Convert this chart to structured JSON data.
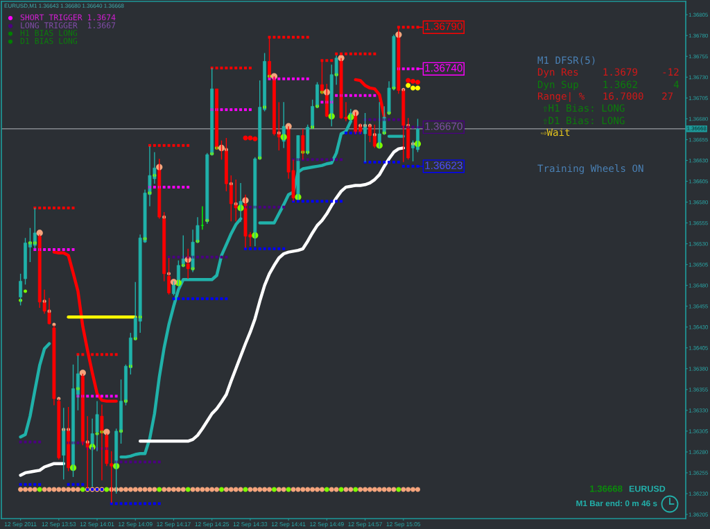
{
  "chart_data": {
    "type": "candlestick",
    "title": "EURUSD,M1 1.36643 1.36680 1.36640 1.36668",
    "x": [
      "2011-09-12T13:45",
      "2011-09-12T13:46",
      "2011-09-12T13:47",
      "2011-09-12T13:48",
      "2011-09-12T13:49",
      "2011-09-12T13:50",
      "2011-09-12T13:51",
      "2011-09-12T13:52",
      "2011-09-12T13:53",
      "2011-09-12T13:54",
      "2011-09-12T13:55",
      "2011-09-12T13:56",
      "2011-09-12T13:57",
      "2011-09-12T13:58",
      "2011-09-12T13:59",
      "2011-09-12T14:00",
      "2011-09-12T14:01",
      "2011-09-12T14:02",
      "2011-09-12T14:03",
      "2011-09-12T14:04",
      "2011-09-12T14:05",
      "2011-09-12T14:06",
      "2011-09-12T14:07",
      "2011-09-12T14:08",
      "2011-09-12T14:09",
      "2011-09-12T14:10",
      "2011-09-12T14:11",
      "2011-09-12T14:12",
      "2011-09-12T14:13",
      "2011-09-12T14:14",
      "2011-09-12T14:15",
      "2011-09-12T14:16",
      "2011-09-12T14:17",
      "2011-09-12T14:18",
      "2011-09-12T14:19",
      "2011-09-12T14:20",
      "2011-09-12T14:21",
      "2011-09-12T14:22",
      "2011-09-12T14:23",
      "2011-09-12T14:24",
      "2011-09-12T14:25",
      "2011-09-12T14:26",
      "2011-09-12T14:27",
      "2011-09-12T14:28",
      "2011-09-12T14:29",
      "2011-09-12T14:30",
      "2011-09-12T14:31",
      "2011-09-12T14:32",
      "2011-09-12T14:33",
      "2011-09-12T14:34",
      "2011-09-12T14:35",
      "2011-09-12T14:36",
      "2011-09-12T14:37",
      "2011-09-12T14:38",
      "2011-09-12T14:39",
      "2011-09-12T14:40",
      "2011-09-12T14:41",
      "2011-09-12T14:42",
      "2011-09-12T14:43",
      "2011-09-12T14:44",
      "2011-09-12T14:45",
      "2011-09-12T14:46",
      "2011-09-12T14:47",
      "2011-09-12T14:48",
      "2011-09-12T14:49",
      "2011-09-12T14:50",
      "2011-09-12T14:51",
      "2011-09-12T14:52",
      "2011-09-12T14:53",
      "2011-09-12T14:54",
      "2011-09-12T14:55",
      "2011-09-12T14:56",
      "2011-09-12T14:57",
      "2011-09-12T14:58",
      "2011-09-12T14:59",
      "2011-09-12T15:00",
      "2011-09-12T15:01",
      "2011-09-12T15:02",
      "2011-09-12T15:03",
      "2011-09-12T15:04",
      "2011-09-12T15:05",
      "2011-09-12T15:06",
      "2011-09-12T15:07",
      "2011-09-12T15:08"
    ],
    "ohlc": [
      [
        1.36466,
        1.36494,
        1.36456,
        1.36485
      ],
      [
        1.36488,
        1.36537,
        1.36481,
        1.36531
      ],
      [
        1.36526,
        1.36549,
        1.36508,
        1.36532
      ],
      [
        1.36528,
        1.36573,
        1.36524,
        1.36543
      ],
      [
        1.36539,
        1.36541,
        1.36453,
        1.3646
      ],
      [
        1.3646,
        1.36475,
        1.36446,
        1.36449
      ],
      [
        1.36448,
        1.36465,
        1.36433,
        1.36434
      ],
      [
        1.36429,
        1.36432,
        1.36336,
        1.36344
      ],
      [
        1.36341,
        1.36344,
        1.36271,
        1.36273
      ],
      [
        1.36276,
        1.36333,
        1.36247,
        1.36308
      ],
      [
        1.36305,
        1.36334,
        1.36257,
        1.36261
      ],
      [
        1.36262,
        1.36385,
        1.3625,
        1.36356
      ],
      [
        1.36349,
        1.36396,
        1.3633,
        1.36374
      ],
      [
        1.36371,
        1.36374,
        1.36288,
        1.36291
      ],
      [
        1.36292,
        1.36323,
        1.36236,
        1.36285
      ],
      [
        1.36285,
        1.3632,
        1.36238,
        1.36302
      ],
      [
        1.36304,
        1.36341,
        1.36281,
        1.36325
      ],
      [
        1.36323,
        1.36337,
        1.36246,
        1.36304
      ],
      [
        1.363,
        1.36302,
        1.36263,
        1.36266
      ],
      [
        1.36266,
        1.36281,
        1.36219,
        1.36263
      ],
      [
        1.36265,
        1.36308,
        1.3623,
        1.36305
      ],
      [
        1.36304,
        1.36367,
        1.3629,
        1.36341
      ],
      [
        1.36341,
        1.36385,
        1.36336,
        1.36383
      ],
      [
        1.36381,
        1.36423,
        1.36373,
        1.36417
      ],
      [
        1.36417,
        1.36484,
        1.36414,
        1.36441
      ],
      [
        1.36437,
        1.36541,
        1.36423,
        1.36537
      ],
      [
        1.36532,
        1.36595,
        1.36531,
        1.36591
      ],
      [
        1.36589,
        1.36647,
        1.36575,
        1.36612
      ],
      [
        1.36608,
        1.3664,
        1.36602,
        1.36621
      ],
      [
        1.3662,
        1.36632,
        1.3656,
        1.36562
      ],
      [
        1.3656,
        1.36568,
        1.36485,
        1.36494
      ],
      [
        1.36491,
        1.36513,
        1.36469,
        1.36471
      ],
      [
        1.3647,
        1.36485,
        1.36468,
        1.36483
      ],
      [
        1.36483,
        1.3651,
        1.3648,
        1.36504
      ],
      [
        1.36506,
        1.3654,
        1.36502,
        1.36512
      ],
      [
        1.36506,
        1.36524,
        1.36488,
        1.365
      ],
      [
        1.365,
        1.36547,
        1.36496,
        1.36532
      ],
      [
        1.36532,
        1.36562,
        1.36531,
        1.36552
      ],
      [
        1.36552,
        1.36575,
        1.36547,
        1.36552
      ],
      [
        1.36557,
        1.36639,
        1.36554,
        1.36637
      ],
      [
        1.36637,
        1.36741,
        1.36636,
        1.36716
      ],
      [
        1.36716,
        1.36716,
        1.36643,
        1.36645
      ],
      [
        1.36646,
        1.36654,
        1.36631,
        1.36642
      ],
      [
        1.36642,
        1.36657,
        1.36593,
        1.36602
      ],
      [
        1.36602,
        1.36612,
        1.36557,
        1.36578
      ],
      [
        1.36578,
        1.36607,
        1.36557,
        1.36573
      ],
      [
        1.36573,
        1.36603,
        1.36556,
        1.36581
      ],
      [
        1.36578,
        1.36589,
        1.36525,
        1.36539
      ],
      [
        1.36541,
        1.36544,
        1.36527,
        1.36538
      ],
      [
        1.36541,
        1.36634,
        1.36527,
        1.36632
      ],
      [
        1.36632,
        1.36726,
        1.36631,
        1.36694
      ],
      [
        1.36691,
        1.36759,
        1.36689,
        1.36749
      ],
      [
        1.36749,
        1.36778,
        1.36729,
        1.36731
      ],
      [
        1.36729,
        1.36731,
        1.3666,
        1.36662
      ],
      [
        1.36662,
        1.367,
        1.36642,
        1.36658
      ],
      [
        1.36653,
        1.367,
        1.36645,
        1.36671
      ],
      [
        1.3667,
        1.36671,
        1.36608,
        1.36616
      ],
      [
        1.36618,
        1.36631,
        1.36581,
        1.36585
      ],
      [
        1.36587,
        1.3666,
        1.36583,
        1.3666
      ],
      [
        1.3666,
        1.36668,
        1.36631,
        1.36639
      ],
      [
        1.36639,
        1.36673,
        1.36637,
        1.3667
      ],
      [
        1.3667,
        1.36703,
        1.36668,
        1.36695
      ],
      [
        1.36695,
        1.36724,
        1.36693,
        1.36721
      ],
      [
        1.36721,
        1.3675,
        1.3671,
        1.36712
      ],
      [
        1.36711,
        1.36722,
        1.36682,
        1.36683
      ],
      [
        1.36683,
        1.36745,
        1.36671,
        1.36733
      ],
      [
        1.36732,
        1.36756,
        1.36721,
        1.36753
      ],
      [
        1.36751,
        1.36753,
        1.3668,
        1.36681
      ],
      [
        1.36682,
        1.367,
        1.36677,
        1.3668
      ],
      [
        1.36681,
        1.36692,
        1.36677,
        1.36687
      ],
      [
        1.36685,
        1.36688,
        1.36662,
        1.36664
      ],
      [
        1.36672,
        1.36674,
        1.36662,
        1.36664
      ],
      [
        1.36662,
        1.36687,
        1.36628,
        1.36671
      ],
      [
        1.36671,
        1.36673,
        1.36652,
        1.3666
      ],
      [
        1.3666,
        1.36673,
        1.36645,
        1.36647
      ],
      [
        1.36649,
        1.367,
        1.36645,
        1.36662
      ],
      [
        1.36662,
        1.36695,
        1.36661,
        1.36682
      ],
      [
        1.36687,
        1.36725,
        1.36685,
        1.36717
      ],
      [
        1.36717,
        1.36781,
        1.36714,
        1.36779
      ],
      [
        1.3678,
        1.3679,
        1.3671,
        1.36714
      ],
      [
        1.36715,
        1.36716,
        1.36628,
        1.36672
      ],
      [
        1.36671,
        1.36681,
        1.36631,
        1.36633
      ],
      [
        1.36645,
        1.36654,
        1.36629,
        1.36651
      ],
      [
        1.36643,
        1.3668,
        1.3664,
        1.36668
      ]
    ],
    "colors": [
      "#20b2aa",
      "#20b2aa",
      "#20b2aa",
      "#20b2aa",
      "#ff0000",
      "#ff0000",
      "#ff0000",
      "#ff0000",
      "#ff0000",
      "#20b2aa",
      "#ff0000",
      "#20b2aa",
      "#20b2aa",
      "#ff0000",
      "#ff0000",
      "#20b2aa",
      "#20b2aa",
      "#ff0000",
      "#ff0000",
      "#ff0000",
      "#20b2aa",
      "#20b2aa",
      "#20b2aa",
      "#20b2aa",
      "#20b2aa",
      "#20b2aa",
      "#20b2aa",
      "#20b2aa",
      "#20b2aa",
      "#ff0000",
      "#ff0000",
      "#ff0000",
      "#20b2aa",
      "#20b2aa",
      "#20b2aa",
      "#ff0000",
      "#20b2aa",
      "#20b2aa",
      "#00ff00",
      "#20b2aa",
      "#20b2aa",
      "#ff0000",
      "#ff0000",
      "#ff0000",
      "#ff0000",
      "#ff0000",
      "#20b2aa",
      "#ff0000",
      "#ff0000",
      "#20b2aa",
      "#20b2aa",
      "#20b2aa",
      "#ff0000",
      "#ff0000",
      "#ff0000",
      "#20b2aa",
      "#ff0000",
      "#ff0000",
      "#20b2aa",
      "#ff0000",
      "#20b2aa",
      "#20b2aa",
      "#20b2aa",
      "#ff0000",
      "#ff0000",
      "#20b2aa",
      "#20b2aa",
      "#ff0000",
      "#ff0000",
      "#20b2aa",
      "#ff0000",
      "#ff0000",
      "#20b2aa",
      "#ff0000",
      "#ff0000",
      "#20b2aa",
      "#20b2aa",
      "#20b2aa",
      "#20b2aa",
      "#ff0000",
      "#ff0000",
      "#ff0000",
      "#20b2aa",
      "#20b2aa"
    ],
    "series": [
      {
        "type": "line",
        "color": "#20b2aa",
        "line_style": "solid",
        "values": [
          1.36298,
          1.36301,
          1.36323,
          1.36354,
          1.36384,
          1.36404,
          1.3641,
          null,
          null,
          null,
          null,
          null,
          null,
          null,
          null,
          null,
          null,
          null,
          null,
          null,
          null,
          1.36274,
          1.36274,
          1.36275,
          1.36277,
          1.36278,
          1.36278,
          1.36296,
          1.36326,
          1.3637,
          1.36405,
          1.36433,
          1.36455,
          1.36475,
          1.36487,
          1.36487,
          1.36487,
          1.36487,
          1.36487,
          1.36487,
          1.36487,
          1.36492,
          1.36516,
          1.36529,
          1.36542,
          1.36553,
          1.3656,
          null,
          null,
          null,
          1.36555,
          1.36555,
          1.36555,
          1.36555,
          1.36566,
          1.36577,
          1.36589,
          1.36592,
          1.36616,
          1.3662,
          1.36621,
          1.36622,
          1.36623,
          1.36624,
          1.36626,
          1.36627,
          1.36639,
          1.36662,
          1.36665,
          1.36677,
          null,
          null,
          null,
          null,
          null,
          null,
          null,
          1.36659,
          1.36659,
          1.36659,
          1.36659,
          null,
          null,
          null
        ]
      },
      {
        "type": "line",
        "color": "#ffffff",
        "line_style": "solid",
        "values": [
          1.36252,
          1.36255,
          1.36256,
          1.36257,
          1.36258,
          1.36262,
          1.36264,
          1.36266,
          1.36266,
          1.36266,
          null,
          null,
          null,
          null,
          null,
          null,
          null,
          null,
          null,
          null,
          null,
          null,
          null,
          null,
          null,
          1.36293,
          1.36293,
          1.36293,
          1.36293,
          1.36293,
          1.36293,
          1.36293,
          1.36293,
          1.36293,
          1.36293,
          1.36293,
          1.36295,
          1.363,
          1.36308,
          1.36317,
          1.36326,
          1.36332,
          1.3634,
          1.36349,
          1.36365,
          1.3638,
          1.36395,
          1.3641,
          1.36424,
          1.3644,
          1.36461,
          1.3648,
          1.36494,
          1.36504,
          1.36513,
          1.36518,
          1.3652,
          1.36521,
          1.36522,
          1.36524,
          1.36533,
          1.36543,
          1.36552,
          1.36558,
          1.36566,
          1.36576,
          1.36585,
          1.36593,
          1.36598,
          1.36599,
          1.366,
          1.366,
          1.36601,
          1.36603,
          1.36607,
          1.36613,
          1.36623,
          1.36632,
          1.3664,
          1.36644,
          1.36645,
          null,
          null,
          null
        ]
      },
      {
        "type": "line",
        "color": "#ff0000",
        "line_style": "solid",
        "values": [
          null,
          null,
          null,
          null,
          null,
          null,
          null,
          1.3652,
          1.36519,
          1.36519,
          1.36516,
          1.36495,
          1.36473,
          1.36431,
          1.36402,
          1.36375,
          1.3635,
          1.36342,
          1.36341,
          1.36341,
          1.36341,
          null,
          null,
          null,
          null,
          null,
          null,
          null,
          null,
          null,
          null,
          null,
          null,
          null,
          null,
          null,
          null,
          null,
          null,
          null,
          null,
          null,
          null,
          null,
          null,
          null,
          null,
          null,
          null,
          null,
          null,
          null,
          null,
          null,
          null,
          null,
          null,
          null,
          null,
          null,
          null,
          null,
          null,
          null,
          null,
          null,
          null,
          null,
          null,
          null,
          1.36727,
          1.36726,
          1.3672,
          1.36717,
          1.36716,
          1.36709,
          1.36683,
          null,
          null,
          null,
          null,
          null,
          null,
          null
        ]
      },
      {
        "type": "scatter",
        "color": "#ff0000",
        "marker": "circle",
        "values": [
          null,
          null,
          null,
          null,
          null,
          null,
          null,
          null,
          null,
          null,
          null,
          null,
          null,
          null,
          null,
          null,
          null,
          null,
          null,
          null,
          null,
          null,
          null,
          null,
          null,
          null,
          null,
          null,
          null,
          null,
          null,
          null,
          null,
          null,
          null,
          null,
          null,
          null,
          null,
          null,
          null,
          null,
          null,
          null,
          null,
          null,
          null,
          1.36657,
          1.36657,
          1.36656,
          null,
          null,
          null,
          null,
          null,
          null,
          null,
          null,
          null,
          null,
          null,
          null,
          null,
          null,
          null,
          null,
          null,
          null,
          null,
          null,
          null,
          null,
          null,
          null,
          null,
          null,
          null,
          null,
          null,
          null,
          null,
          1.36726,
          1.36725,
          1.36724
        ]
      },
      {
        "type": "line",
        "color": "#ffff00",
        "line_style": "solid",
        "values": [
          null,
          null,
          null,
          null,
          null,
          null,
          null,
          null,
          null,
          null,
          1.36442,
          1.36442,
          1.36442,
          1.36442,
          1.36442,
          1.36442,
          1.36442,
          1.36442,
          1.36442,
          1.36442,
          1.36442,
          1.36442,
          1.36442,
          1.36442,
          1.36442,
          null,
          null,
          null,
          null,
          null,
          null,
          null,
          null,
          null,
          null,
          null,
          null,
          null,
          null,
          null,
          null,
          null,
          null,
          null,
          null,
          null,
          null,
          null,
          null,
          null,
          null,
          null,
          null,
          null,
          null,
          null,
          null,
          null,
          null,
          null,
          null,
          null,
          null,
          null,
          null,
          null,
          null,
          null,
          null,
          null,
          null,
          null,
          null,
          null,
          null,
          null,
          null,
          null,
          null,
          null,
          null,
          null,
          null,
          null
        ]
      },
      {
        "type": "scatter",
        "color": "#ffff00",
        "marker": "circle",
        "values": [
          null,
          null,
          null,
          null,
          null,
          null,
          null,
          null,
          null,
          null,
          null,
          null,
          null,
          null,
          null,
          null,
          null,
          null,
          null,
          null,
          null,
          null,
          null,
          null,
          null,
          null,
          null,
          null,
          null,
          null,
          null,
          null,
          null,
          null,
          null,
          null,
          null,
          null,
          null,
          null,
          null,
          null,
          null,
          null,
          null,
          null,
          null,
          null,
          null,
          null,
          null,
          null,
          null,
          null,
          null,
          null,
          null,
          null,
          null,
          null,
          null,
          null,
          null,
          null,
          null,
          null,
          null,
          null,
          null,
          null,
          null,
          null,
          null,
          null,
          null,
          null,
          null,
          null,
          null,
          null,
          null,
          1.3672,
          1.36717,
          1.36717
        ]
      },
      {
        "type": "scatter",
        "color": "#ff0000",
        "marker": "square",
        "values": [
          null,
          null,
          null,
          1.36573,
          1.36573,
          1.36573,
          1.36573,
          1.36573,
          1.36573,
          1.36573,
          1.36573,
          1.36573,
          1.36397,
          1.36397,
          null,
          1.36397,
          1.36397,
          1.36397,
          1.36397,
          1.36397,
          1.36397,
          null,
          null,
          null,
          null,
          null,
          null,
          1.36648,
          1.36648,
          1.36648,
          1.36648,
          1.36648,
          1.36648,
          1.36648,
          1.36648,
          1.36648,
          null,
          null,
          null,
          null,
          1.36741,
          1.36741,
          1.36741,
          1.36741,
          1.36741,
          1.36741,
          1.36741,
          1.36741,
          1.36741,
          null,
          null,
          null,
          1.36778,
          1.36778,
          1.36778,
          1.36778,
          1.36778,
          1.36778,
          1.36778,
          1.36778,
          1.36778,
          null,
          null,
          1.3675,
          1.3675,
          1.3675,
          1.36758,
          1.36758,
          1.36758,
          1.36758,
          1.36758,
          1.36758,
          1.36758,
          1.36758,
          1.36758,
          null,
          null,
          null,
          null,
          1.3679,
          1.3679,
          1.3679,
          1.3679,
          1.3679
        ]
      },
      {
        "type": "scatter",
        "color": "#ff00ff",
        "marker": "square",
        "values": [
          null,
          null,
          null,
          1.36523,
          1.36523,
          1.36523,
          1.36523,
          1.36523,
          1.36523,
          1.36523,
          1.36523,
          1.36523,
          1.36347,
          1.36347,
          1.36347,
          1.36347,
          1.36347,
          1.36347,
          1.36347,
          1.36347,
          1.36347,
          null,
          null,
          null,
          null,
          null,
          null,
          1.36598,
          1.36598,
          1.36598,
          1.36598,
          1.36598,
          1.36598,
          1.36598,
          1.36598,
          1.36598,
          null,
          null,
          null,
          null,
          1.36691,
          1.36691,
          1.36691,
          1.36691,
          1.36691,
          1.36691,
          1.36691,
          1.36691,
          1.36691,
          null,
          null,
          null,
          1.36728,
          1.36728,
          1.36728,
          1.36728,
          1.36728,
          1.36728,
          1.36728,
          1.36728,
          1.36728,
          null,
          null,
          1.367,
          1.367,
          1.367,
          1.36708,
          1.36708,
          1.36708,
          1.36708,
          1.36708,
          1.36708,
          1.36708,
          1.36708,
          1.36708,
          null,
          null,
          null,
          null,
          1.3674,
          1.3674,
          1.3674,
          1.3674,
          1.3674
        ]
      },
      {
        "type": "scatter",
        "color": "#4b0082",
        "marker": "square",
        "values": [
          1.36292,
          1.36292,
          1.36292,
          1.36292,
          1.36292,
          null,
          null,
          null,
          null,
          null,
          1.36291,
          1.36291,
          1.36291,
          1.36291,
          1.36284,
          1.36284,
          1.36284,
          1.36284,
          1.36284,
          null,
          1.36268,
          1.36268,
          1.36268,
          1.36268,
          1.36268,
          1.36268,
          1.36268,
          1.36268,
          1.36268,
          1.36268,
          null,
          1.36514,
          1.36514,
          1.36514,
          1.36514,
          1.36514,
          1.36514,
          1.36514,
          1.36514,
          1.36514,
          1.36514,
          1.36514,
          1.36514,
          1.36514,
          null,
          null,
          null,
          1.36574,
          1.36574,
          1.36574,
          1.36574,
          1.36574,
          1.36574,
          1.36574,
          1.36574,
          1.36574,
          null,
          1.36631,
          1.36631,
          1.36631,
          1.36631,
          1.36631,
          1.36631,
          1.36631,
          1.36631,
          1.36631,
          1.36631,
          1.36631,
          null,
          null,
          null,
          null,
          1.36679,
          1.36679,
          1.36679,
          1.36679,
          1.36679,
          1.36679,
          1.36679,
          1.36679,
          1.3667,
          1.3667,
          1.3667,
          1.3667
        ]
      },
      {
        "type": "scatter",
        "color": "#0000ff",
        "marker": "square",
        "values": [
          1.36241,
          1.36241,
          1.36241,
          1.36241,
          1.36241,
          null,
          null,
          null,
          null,
          null,
          1.36241,
          1.36241,
          1.36241,
          1.36241,
          1.36235,
          1.36235,
          1.36235,
          1.36235,
          null,
          1.36218,
          1.36218,
          1.36218,
          1.36218,
          1.36218,
          1.36218,
          1.36218,
          1.36218,
          1.36218,
          1.36218,
          1.36218,
          null,
          null,
          1.36464,
          1.36464,
          1.36464,
          1.36464,
          1.36464,
          1.36464,
          1.36464,
          1.36464,
          1.36464,
          1.36464,
          1.36464,
          1.36464,
          null,
          null,
          null,
          1.36524,
          1.36524,
          1.36524,
          1.36524,
          1.36524,
          1.36524,
          1.36524,
          1.36524,
          1.36524,
          null,
          1.36581,
          1.36581,
          1.36581,
          1.36581,
          1.36581,
          1.36581,
          1.36581,
          1.36581,
          1.36581,
          1.36581,
          1.36581,
          1.36663,
          1.36663,
          1.36663,
          1.36663,
          1.36628,
          1.36628,
          1.36628,
          1.36628,
          1.36628,
          1.36628,
          1.36628,
          1.36628,
          1.36623,
          1.36623,
          1.36623,
          1.36623
        ]
      },
      {
        "type": "bubble",
        "color": "#7cfc00",
        "marker": "circle",
        "values": [
          1.36462,
          1.36473,
          1.36531,
          1.36531,
          null,
          null,
          null,
          null,
          null,
          null,
          null,
          1.36261,
          1.36356,
          null,
          null,
          1.36286,
          1.36302,
          1.36304,
          null,
          null,
          1.36263,
          1.36305,
          1.36341,
          1.36383,
          1.36416,
          1.36442,
          1.36536,
          1.36591,
          1.36612,
          null,
          null,
          null,
          null,
          1.36483,
          1.36504,
          null,
          1.365,
          1.36533,
          null,
          1.36558,
          1.36638,
          1.36645,
          null,
          null,
          null,
          null,
          1.36573,
          null,
          null,
          1.3654,
          1.36633,
          1.36694,
          1.36731,
          null,
          null,
          1.36658,
          null,
          null,
          1.36586,
          1.3664,
          1.3664,
          1.3667,
          1.36695,
          1.36712,
          null,
          1.36683,
          1.36733,
          null,
          null,
          1.36682,
          null,
          null,
          null,
          null,
          null,
          1.36648,
          1.36663,
          1.36687,
          1.36717,
          null,
          null,
          null,
          null,
          1.3665
        ],
        "sizes": [
          0.3,
          0.3,
          0.3,
          0.3,
          null,
          null,
          null,
          null,
          null,
          null,
          null,
          1,
          0.3,
          null,
          null,
          1,
          0.3,
          0.3,
          null,
          null,
          1,
          0.3,
          0.3,
          0.3,
          0.3,
          0.3,
          0.3,
          0.3,
          0.3,
          null,
          null,
          null,
          null,
          1,
          0.3,
          null,
          0.3,
          0.3,
          null,
          0.3,
          0.3,
          0.3,
          null,
          null,
          null,
          null,
          1,
          null,
          null,
          1,
          0.3,
          0.3,
          0.3,
          null,
          null,
          1,
          null,
          null,
          1,
          0.3,
          0.3,
          0.3,
          0.3,
          0.3,
          null,
          1,
          0.3,
          null,
          null,
          1,
          null,
          null,
          null,
          null,
          null,
          1,
          0.3,
          0.3,
          0.3,
          null,
          null,
          null,
          null,
          1
        ]
      },
      {
        "type": "bubble",
        "color": "#f4a47c",
        "marker": "circle",
        "values": [
          null,
          null,
          null,
          null,
          1.36543,
          1.36461,
          1.36449,
          1.36433,
          1.36344,
          1.36307,
          1.36307,
          null,
          null,
          1.36375,
          1.36292,
          null,
          null,
          null,
          1.36304,
          null,
          null,
          null,
          null,
          null,
          null,
          null,
          null,
          null,
          null,
          1.36622,
          1.36562,
          1.36494,
          1.36484,
          null,
          null,
          1.36511,
          null,
          null,
          null,
          null,
          null,
          null,
          1.36645,
          1.36643,
          1.36602,
          1.36578,
          null,
          1.36582,
          null,
          null,
          null,
          null,
          null,
          1.36731,
          1.36663,
          null,
          1.36671,
          null,
          null,
          null,
          null,
          null,
          null,
          null,
          1.36712,
          null,
          null,
          1.36753,
          null,
          null,
          1.36687,
          1.36672,
          1.36672,
          1.36672,
          1.36661,
          null,
          null,
          null,
          null,
          1.36781,
          1.36715,
          1.36672,
          1.3665,
          null
        ],
        "sizes": [
          null,
          null,
          null,
          null,
          1,
          0.3,
          0.3,
          0.3,
          0.3,
          0.3,
          0.3,
          null,
          null,
          1,
          0.3,
          null,
          null,
          null,
          1,
          null,
          null,
          null,
          null,
          null,
          null,
          null,
          null,
          null,
          null,
          1,
          0.3,
          0.3,
          1,
          null,
          null,
          1,
          null,
          null,
          null,
          null,
          null,
          null,
          1,
          0.3,
          0.3,
          0.3,
          null,
          1,
          null,
          null,
          null,
          null,
          null,
          1,
          0.3,
          null,
          1,
          null,
          null,
          null,
          null,
          null,
          null,
          null,
          1,
          null,
          null,
          1,
          null,
          null,
          1,
          0.3,
          0.3,
          0.3,
          0.3,
          null,
          null,
          null,
          null,
          1,
          0.3,
          0.3,
          0.3,
          null
        ]
      },
      {
        "type": "scatter",
        "color": "#f4a47c",
        "marker": "circle",
        "values": [
          1.36235,
          1.36235,
          1.36235,
          1.36235,
          null,
          1.36235,
          1.36235,
          1.36235,
          1.36235,
          1.36235,
          1.36235,
          1.36235,
          1.36235,
          null,
          1.36235,
          1.36235,
          1.36235,
          1.36235,
          null,
          1.36235,
          1.36235,
          1.36235,
          1.36235,
          1.36235,
          1.36235,
          1.36235,
          1.36235,
          1.36235,
          1.36235,
          null,
          1.36235,
          1.36235,
          1.36235,
          1.36235,
          1.36235,
          null,
          1.36235,
          1.36235,
          1.36235,
          1.36235,
          1.36235,
          1.36235,
          null,
          1.36235,
          1.36235,
          1.36235,
          1.36235,
          null,
          1.36235,
          1.36235,
          1.36235,
          1.36235,
          1.36235,
          null,
          1.36235,
          1.36235,
          null,
          1.36235,
          1.36235,
          1.36235,
          1.36235,
          1.36235,
          1.36235,
          1.36235,
          null,
          1.36235,
          1.36235,
          null,
          1.36235,
          1.36235,
          null,
          1.36235,
          1.36235,
          1.36235,
          1.36235,
          1.36235,
          1.36235,
          1.36235,
          1.36235,
          null,
          1.36235,
          1.36235,
          1.36235,
          1.36235
        ]
      },
      {
        "type": "scatter",
        "color": "#7cfc00",
        "marker": "circle",
        "values": [
          null,
          null,
          null,
          null,
          1.36235,
          null,
          null,
          null,
          null,
          null,
          null,
          null,
          null,
          1.36235,
          null,
          null,
          null,
          null,
          1.36235,
          null,
          null,
          null,
          null,
          null,
          null,
          null,
          null,
          null,
          null,
          1.36235,
          null,
          null,
          null,
          null,
          null,
          1.36235,
          null,
          null,
          null,
          null,
          null,
          null,
          1.36235,
          null,
          null,
          null,
          null,
          1.36235,
          null,
          null,
          null,
          null,
          null,
          1.36235,
          null,
          null,
          1.36235,
          null,
          null,
          null,
          null,
          null,
          null,
          null,
          1.36235,
          null,
          null,
          1.36235,
          null,
          null,
          1.36235,
          null,
          null,
          null,
          null,
          null,
          null,
          null,
          null,
          1.36235,
          null,
          null,
          null,
          null
        ]
      }
    ],
    "xlim": [
      "2011-09-12T13:41",
      "2011-09-12T16:04"
    ],
    "xticks": [
      {
        "value": "2011-09-12T13:45",
        "label": "12 Sep 2011"
      },
      {
        "value": "2011-09-12T13:53",
        "label": "12 Sep 13:53"
      },
      {
        "value": "2011-09-12T14:01",
        "label": "12 Sep 14:01"
      },
      {
        "value": "2011-09-12T14:09",
        "label": "12 Sep 14:09"
      },
      {
        "value": "2011-09-12T14:17",
        "label": "12 Sep 14:17"
      },
      {
        "value": "2011-09-12T14:25",
        "label": "12 Sep 14:25"
      },
      {
        "value": "2011-09-12T14:33",
        "label": "12 Sep 14:33"
      },
      {
        "value": "2011-09-12T14:41",
        "label": "12 Sep 14:41"
      },
      {
        "value": "2011-09-12T14:49",
        "label": "12 Sep 14:49"
      },
      {
        "value": "2011-09-12T14:57",
        "label": "12 Sep 14:57"
      },
      {
        "value": "2011-09-12T15:05",
        "label": "12 Sep 15:05"
      }
    ],
    "ylim": [
      1.362,
      1.36821
    ],
    "yticks": [
      1.36205,
      {
        "value": 1.3623,
        "label": "1.36230"
      },
      1.36255,
      {
        "value": 1.3628,
        "label": "1.36280"
      },
      1.36305,
      {
        "value": 1.3633,
        "label": "1.36330"
      },
      1.36355,
      {
        "value": 1.3638,
        "label": "1.36380"
      },
      1.36405,
      {
        "value": 1.3643,
        "label": "1.36430"
      },
      1.36455,
      {
        "value": 1.3648,
        "label": "1.36480"
      },
      1.36505,
      {
        "value": 1.3653,
        "label": "1.36530"
      },
      1.36555,
      {
        "value": 1.3658,
        "label": "1.36580"
      },
      1.36605,
      {
        "value": 1.3663,
        "label": "1.36630"
      },
      1.36655,
      {
        "value": 1.3668,
        "label": "1.36680"
      },
      1.36705,
      {
        "value": 1.3673,
        "label": "1.36730"
      },
      1.36755,
      {
        "value": 1.3678,
        "label": "1.36780"
      },
      1.36805
    ],
    "ref_lines": [
      {
        "axis": "y",
        "value": 1.36668,
        "label": "1.36668",
        "color": "#868a8f"
      }
    ],
    "annotations": [
      "SHORT TRIGGER 1.3674",
      "LONG TRIGGER  1.3667",
      "H1 BIAS LONG",
      "D1 BIAS LONG",
      "M1 DFSR(5)",
      "Dyn Res    1.3679    -12",
      "Dyn Sup    1.3662      4",
      "Range| %   16.7000   27",
      "⇧H1 Bias: LONG",
      "⇧D1 Bias: LONG",
      "⇨Wait",
      "Training Wheels ON",
      "1.36668",
      "EURUSD",
      "M1 Bar end: 0 m 46 s",
      {
        "text": "1.36790",
        "x": "2011-09-12T15:08",
        "y": 1.3679
      },
      {
        "text": "1.36740",
        "x": "2011-09-12T15:08",
        "y": 1.3674
      },
      {
        "text": "1.36670",
        "x": "2011-09-12T15:08",
        "y": 1.3667
      },
      {
        "text": "1.36623",
        "x": "2011-09-12T15:08",
        "y": 1.36623
      }
    ]
  }
}
